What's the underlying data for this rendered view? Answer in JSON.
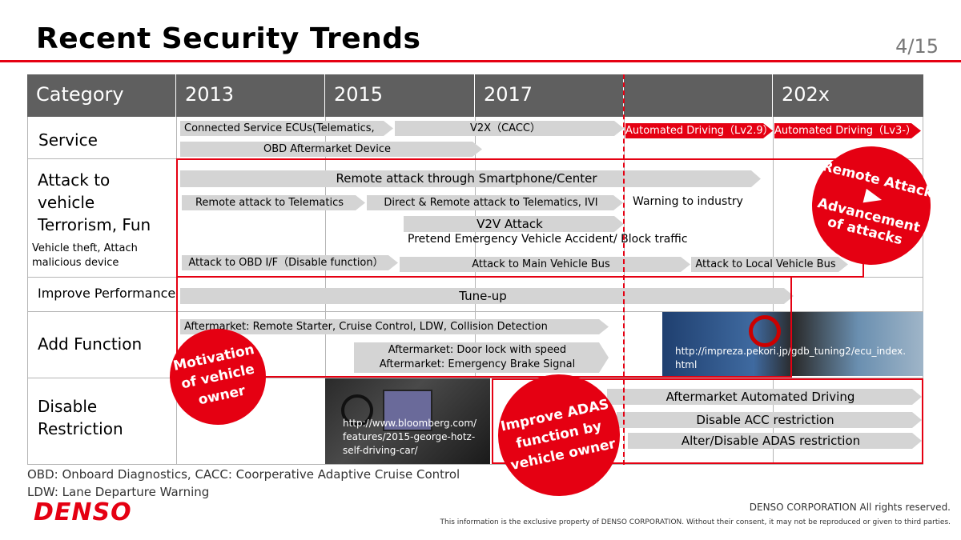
{
  "header": {
    "title": "Recent Security Trends",
    "page_number": "4/15"
  },
  "table": {
    "columns": [
      "Category",
      "2013",
      "2015",
      "2017",
      "",
      "202x"
    ],
    "rows": {
      "service": "Service",
      "attack": "Attack to vehicle Terrorism, Fun",
      "attack_line1": "Attack to",
      "attack_line2": "vehicle",
      "attack_line3": "Terrorism, Fun",
      "attack_sub1": "Vehicle theft, Attach",
      "attack_sub2": "malicious device",
      "performance": "Improve Performance",
      "add_function": "Add Function",
      "disable_line1": "Disable",
      "disable_line2": "Restriction"
    }
  },
  "items": {
    "connected_service": "Connected Service ECUs(Telematics,",
    "v2x": "V2X（CACC）",
    "auto_lv29": "Automated Driving（Lv2.9）",
    "auto_lv3": "Automated Driving（Lv3-）",
    "obd_device": "OBD Aftermarket Device",
    "remote_smartphone": "Remote attack through Smartphone/Center",
    "remote_telematics": "Remote attack to Telematics",
    "direct_remote": "Direct & Remote attack to Telematics, IVI",
    "warning": "Warning to industry",
    "v2v": "V2V Attack",
    "pretend": "Pretend Emergency Vehicle Accident/ Block traffic",
    "obd_if": "Attack to OBD I/F（Disable function）",
    "main_bus": "Attack to Main Vehicle Bus",
    "local_bus": "Attack to Local Vehicle Bus",
    "tuneup": "Tune-up",
    "aftermarket_starter": "Aftermarket: Remote Starter, Cruise  Control, LDW, Collision Detection",
    "door_lock_1": "Aftermarket: Door lock with speed",
    "door_lock_2": "Aftermarket: Emergency Brake Signal",
    "aftermarket_auto": "Aftermarket Automated Driving",
    "disable_acc": "Disable ACC restriction",
    "alter_adas": "Alter/Disable ADAS restriction"
  },
  "photos": {
    "bloomberg_1": "http://www.bloomberg.com/",
    "bloomberg_2": "features/2015-george-hotz-",
    "bloomberg_3": "self-driving-car/",
    "impreza_1": "http://impreza.pekori.jp/gdb_tuning2/ecu_index.",
    "impreza_2": "html"
  },
  "callouts": {
    "remote_1": "Remote Attack",
    "remote_2": "Advancement",
    "remote_3": "of attacks",
    "motivation_1": "Motivation",
    "motivation_2": "of vehicle",
    "motivation_3": "owner",
    "adas_1": "Improve ADAS",
    "adas_2": "function by",
    "adas_3": "vehicle owner"
  },
  "footer": {
    "note_1": "OBD: Onboard Diagnostics, CACC: Coorperative Adaptive Cruise Control",
    "note_2": "LDW: Lane Departure Warning",
    "logo": "DENSO",
    "copyright": "DENSO CORPORATION All rights reserved.",
    "disclaimer": "This information is the exclusive property of DENSO CORPORATION. Without their consent, it may not be reproduced or given to third parties."
  },
  "colors": {
    "accent": "#e50012",
    "header_bg": "#5f5f5f",
    "arrow_gray": "#d4d4d4"
  }
}
